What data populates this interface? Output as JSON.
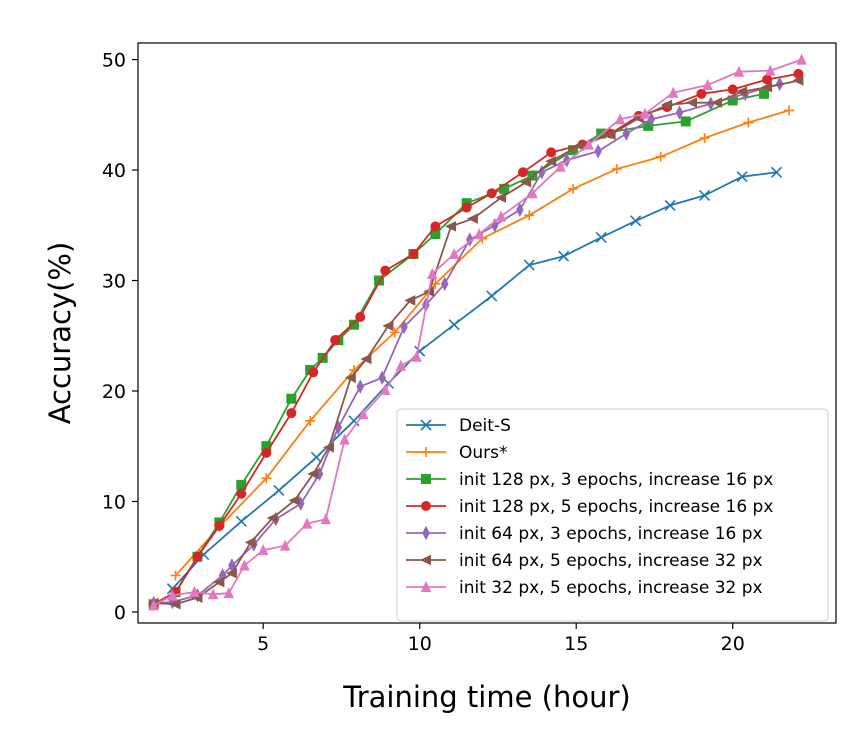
{
  "chart_data": {
    "type": "line",
    "title": "",
    "xlabel": "Training time (hour)",
    "ylabel": "Accuracy(%)",
    "xlim": [
      1.0,
      23.3
    ],
    "ylim": [
      -1.0,
      51.5
    ],
    "xticks": [
      5,
      10,
      15,
      20
    ],
    "yticks": [
      0,
      10,
      20,
      30,
      40,
      50
    ],
    "grid": false,
    "legend_position": "lower right",
    "series": [
      {
        "name": "Deit-S",
        "color": "#1f77b4",
        "marker": "x",
        "points": [
          [
            2.1,
            2.1
          ],
          [
            3.1,
            5.2
          ],
          [
            4.3,
            8.2
          ],
          [
            5.5,
            11.0
          ],
          [
            6.7,
            14.0
          ],
          [
            7.9,
            17.3
          ],
          [
            9.0,
            20.7
          ],
          [
            10.0,
            23.6
          ],
          [
            11.1,
            26.0
          ],
          [
            12.3,
            28.6
          ],
          [
            13.5,
            31.4
          ],
          [
            14.6,
            32.2
          ],
          [
            15.8,
            33.9
          ],
          [
            16.9,
            35.4
          ],
          [
            18.0,
            36.8
          ],
          [
            19.1,
            37.7
          ],
          [
            20.3,
            39.4
          ],
          [
            21.4,
            39.8
          ]
        ]
      },
      {
        "name": "Ours*",
        "color": "#ff7f0e",
        "marker": "+",
        "points": [
          [
            2.2,
            3.3
          ],
          [
            3.6,
            7.7
          ],
          [
            5.1,
            12.1
          ],
          [
            6.5,
            17.3
          ],
          [
            7.9,
            21.9
          ],
          [
            9.2,
            25.3
          ],
          [
            10.5,
            29.7
          ],
          [
            12.0,
            33.8
          ],
          [
            13.5,
            35.9
          ],
          [
            14.9,
            38.3
          ],
          [
            16.3,
            40.1
          ],
          [
            17.7,
            41.2
          ],
          [
            19.1,
            42.9
          ],
          [
            20.5,
            44.3
          ],
          [
            21.8,
            45.4
          ]
        ]
      },
      {
        "name": "init 128 px, 3 epochs, increase 16 px",
        "color": "#2ca02c",
        "marker": "square",
        "points": [
          [
            1.5,
            0.7
          ],
          [
            2.2,
            1.8
          ],
          [
            2.9,
            5.0
          ],
          [
            3.6,
            8.1
          ],
          [
            4.3,
            11.5
          ],
          [
            5.1,
            15.0
          ],
          [
            5.9,
            19.3
          ],
          [
            6.5,
            21.9
          ],
          [
            6.9,
            23.0
          ],
          [
            7.4,
            24.6
          ],
          [
            7.9,
            26.0
          ],
          [
            8.7,
            30.0
          ],
          [
            9.8,
            32.4
          ],
          [
            10.5,
            34.2
          ],
          [
            11.5,
            37.0
          ],
          [
            12.7,
            38.3
          ],
          [
            13.6,
            39.5
          ],
          [
            14.9,
            41.8
          ],
          [
            15.8,
            43.3
          ],
          [
            17.3,
            44.0
          ],
          [
            18.5,
            44.4
          ],
          [
            20.0,
            46.3
          ],
          [
            21.0,
            46.9
          ]
        ]
      },
      {
        "name": "init 128 px, 5 epochs, increase 16 px",
        "color": "#d62728",
        "marker": "circle",
        "points": [
          [
            1.5,
            0.7
          ],
          [
            2.2,
            1.8
          ],
          [
            2.9,
            5.0
          ],
          [
            3.6,
            7.8
          ],
          [
            4.3,
            10.7
          ],
          [
            5.1,
            14.4
          ],
          [
            5.9,
            18.0
          ],
          [
            6.6,
            21.7
          ],
          [
            7.3,
            24.6
          ],
          [
            8.1,
            26.7
          ],
          [
            8.9,
            30.9
          ],
          [
            9.8,
            32.4
          ],
          [
            10.5,
            34.9
          ],
          [
            11.5,
            36.6
          ],
          [
            12.3,
            37.9
          ],
          [
            13.3,
            39.8
          ],
          [
            14.2,
            41.6
          ],
          [
            15.2,
            42.3
          ],
          [
            16.1,
            43.3
          ],
          [
            17.0,
            44.9
          ],
          [
            17.9,
            45.7
          ],
          [
            19.0,
            46.9
          ],
          [
            20.0,
            47.3
          ],
          [
            21.1,
            48.2
          ],
          [
            22.1,
            48.7
          ]
        ]
      },
      {
        "name": "init 64 px, 3 epochs, increase 16 px",
        "color": "#9467bd",
        "marker": "thin_diamond",
        "points": [
          [
            1.5,
            0.8
          ],
          [
            2.1,
            0.9
          ],
          [
            2.9,
            1.5
          ],
          [
            3.7,
            3.3
          ],
          [
            4.0,
            4.2
          ],
          [
            4.7,
            6.1
          ],
          [
            5.4,
            8.4
          ],
          [
            6.2,
            9.8
          ],
          [
            6.8,
            12.5
          ],
          [
            7.4,
            16.7
          ],
          [
            8.1,
            20.4
          ],
          [
            8.8,
            21.2
          ],
          [
            9.5,
            25.8
          ],
          [
            10.2,
            27.8
          ],
          [
            10.8,
            29.7
          ],
          [
            11.6,
            33.7
          ],
          [
            12.4,
            35.0
          ],
          [
            13.2,
            36.4
          ],
          [
            13.9,
            39.8
          ],
          [
            14.7,
            40.9
          ],
          [
            15.7,
            41.7
          ],
          [
            16.6,
            43.3
          ],
          [
            17.4,
            44.6
          ],
          [
            18.3,
            45.2
          ],
          [
            19.3,
            46.0
          ],
          [
            20.4,
            46.9
          ],
          [
            21.5,
            47.8
          ]
        ]
      },
      {
        "name": "init 64 px, 5 epochs, increase 32 px",
        "color": "#8c564b",
        "marker": "triangle-left",
        "points": [
          [
            1.5,
            0.8
          ],
          [
            2.2,
            0.7
          ],
          [
            2.9,
            1.3
          ],
          [
            3.6,
            2.7
          ],
          [
            4.0,
            3.5
          ],
          [
            4.6,
            6.3
          ],
          [
            5.3,
            8.5
          ],
          [
            6.0,
            10.1
          ],
          [
            6.6,
            12.5
          ],
          [
            7.1,
            14.9
          ],
          [
            7.8,
            21.2
          ],
          [
            8.3,
            22.9
          ],
          [
            9.0,
            25.9
          ],
          [
            9.7,
            28.2
          ],
          [
            10.3,
            29.0
          ],
          [
            11.0,
            34.9
          ],
          [
            11.7,
            35.6
          ],
          [
            12.6,
            37.5
          ],
          [
            13.4,
            38.9
          ],
          [
            14.2,
            40.8
          ],
          [
            15.1,
            42.2
          ],
          [
            16.1,
            43.2
          ],
          [
            17.0,
            44.7
          ],
          [
            17.9,
            45.9
          ],
          [
            18.7,
            46.1
          ],
          [
            19.5,
            46.1
          ],
          [
            20.3,
            47.1
          ],
          [
            21.1,
            47.5
          ],
          [
            22.1,
            48.1
          ]
        ]
      },
      {
        "name": "init 32 px, 5 epochs, increase 32 px",
        "color": "#e377c2",
        "marker": "triangle-up",
        "points": [
          [
            1.5,
            0.6
          ],
          [
            2.1,
            1.5
          ],
          [
            2.8,
            1.8
          ],
          [
            3.4,
            1.6
          ],
          [
            3.9,
            1.7
          ],
          [
            4.4,
            4.2
          ],
          [
            5.0,
            5.6
          ],
          [
            5.7,
            6.0
          ],
          [
            6.4,
            8.0
          ],
          [
            7.0,
            8.4
          ],
          [
            7.6,
            15.6
          ],
          [
            8.2,
            17.9
          ],
          [
            8.9,
            20.1
          ],
          [
            9.4,
            22.3
          ],
          [
            9.9,
            23.1
          ],
          [
            10.4,
            30.6
          ],
          [
            11.1,
            32.4
          ],
          [
            11.9,
            34.2
          ],
          [
            12.6,
            35.8
          ],
          [
            13.6,
            37.9
          ],
          [
            14.5,
            40.3
          ],
          [
            15.4,
            42.3
          ],
          [
            16.4,
            44.6
          ],
          [
            17.2,
            45.1
          ],
          [
            18.1,
            47.0
          ],
          [
            19.2,
            47.7
          ],
          [
            20.2,
            48.9
          ],
          [
            21.2,
            49.0
          ],
          [
            22.2,
            50.0
          ]
        ]
      }
    ]
  }
}
